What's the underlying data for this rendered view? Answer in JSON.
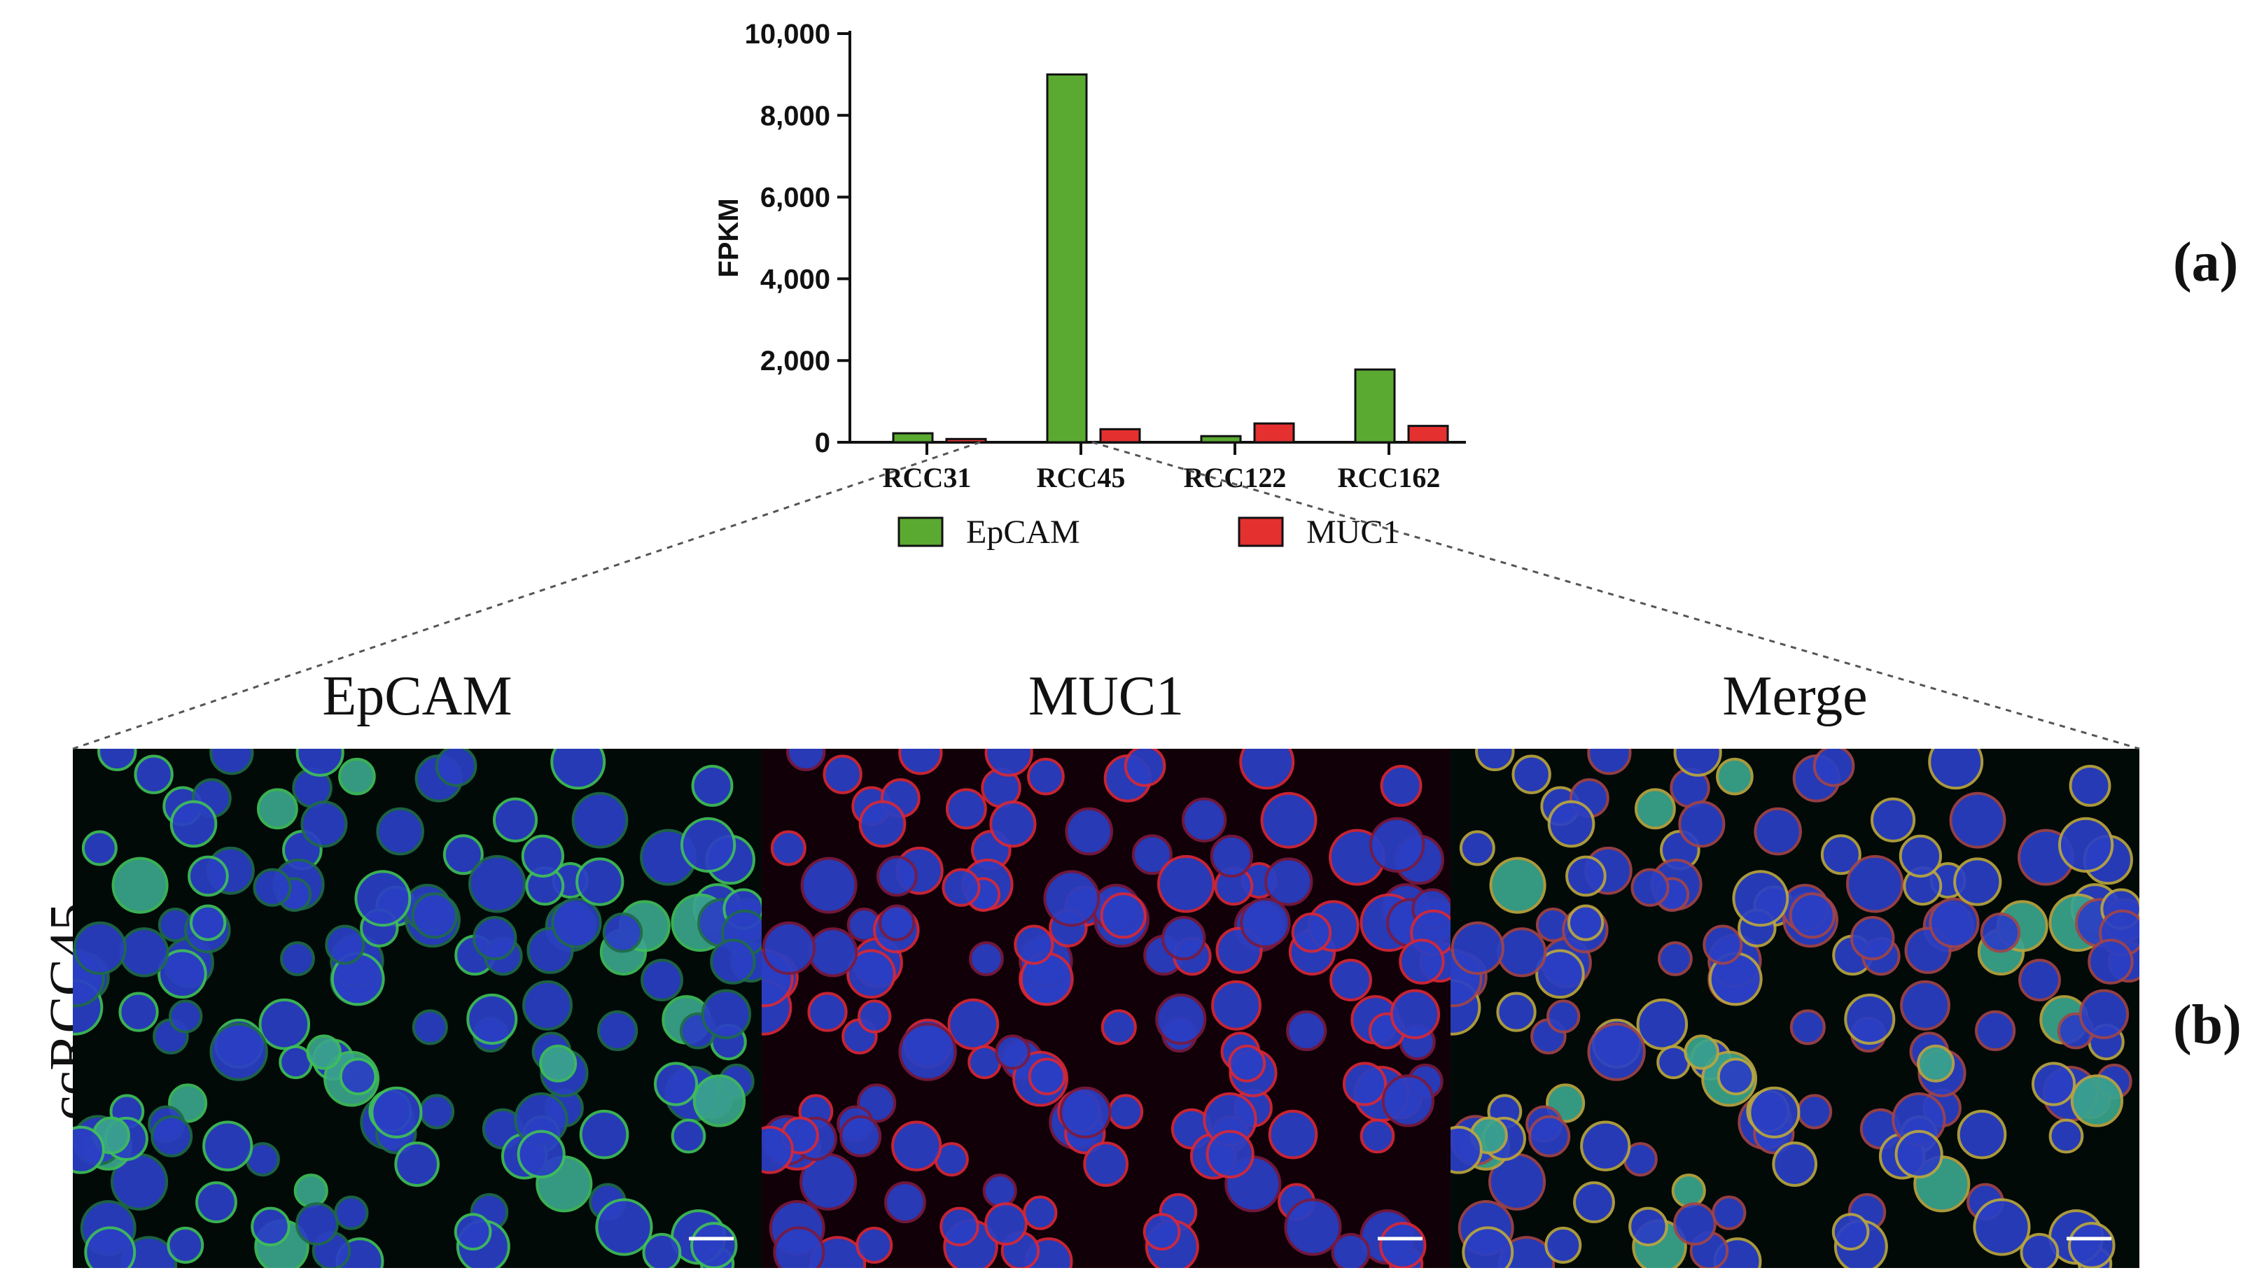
{
  "chart_data": {
    "type": "bar",
    "categories": [
      "RCC31",
      "RCC45",
      "RCC122",
      "RCC162"
    ],
    "series": [
      {
        "name": "EpCAM",
        "values": [
          220,
          9000,
          150,
          1780
        ]
      },
      {
        "name": "MUC1",
        "values": [
          80,
          320,
          460,
          400
        ]
      }
    ],
    "ylabel": "FPKM",
    "xlabel": "",
    "ylim": [
      0,
      10000
    ],
    "yticks": [
      0,
      2000,
      4000,
      6000,
      8000,
      10000
    ],
    "ytick_labels": [
      "0",
      "2,000",
      "4,000",
      "6,000",
      "8,000",
      "10,000"
    ],
    "legend_position": "bottom",
    "colors": {
      "EpCAM": "#5aaa32",
      "MUC1": "#e53030"
    }
  },
  "labels": {
    "panel_a": "(a)",
    "panel_b": "(b)",
    "row_label": "ccRCC45",
    "image_titles": [
      "EpCAM",
      "MUC1",
      "Merge"
    ]
  },
  "icons": {
    "scale_bar": "scale-bar"
  }
}
